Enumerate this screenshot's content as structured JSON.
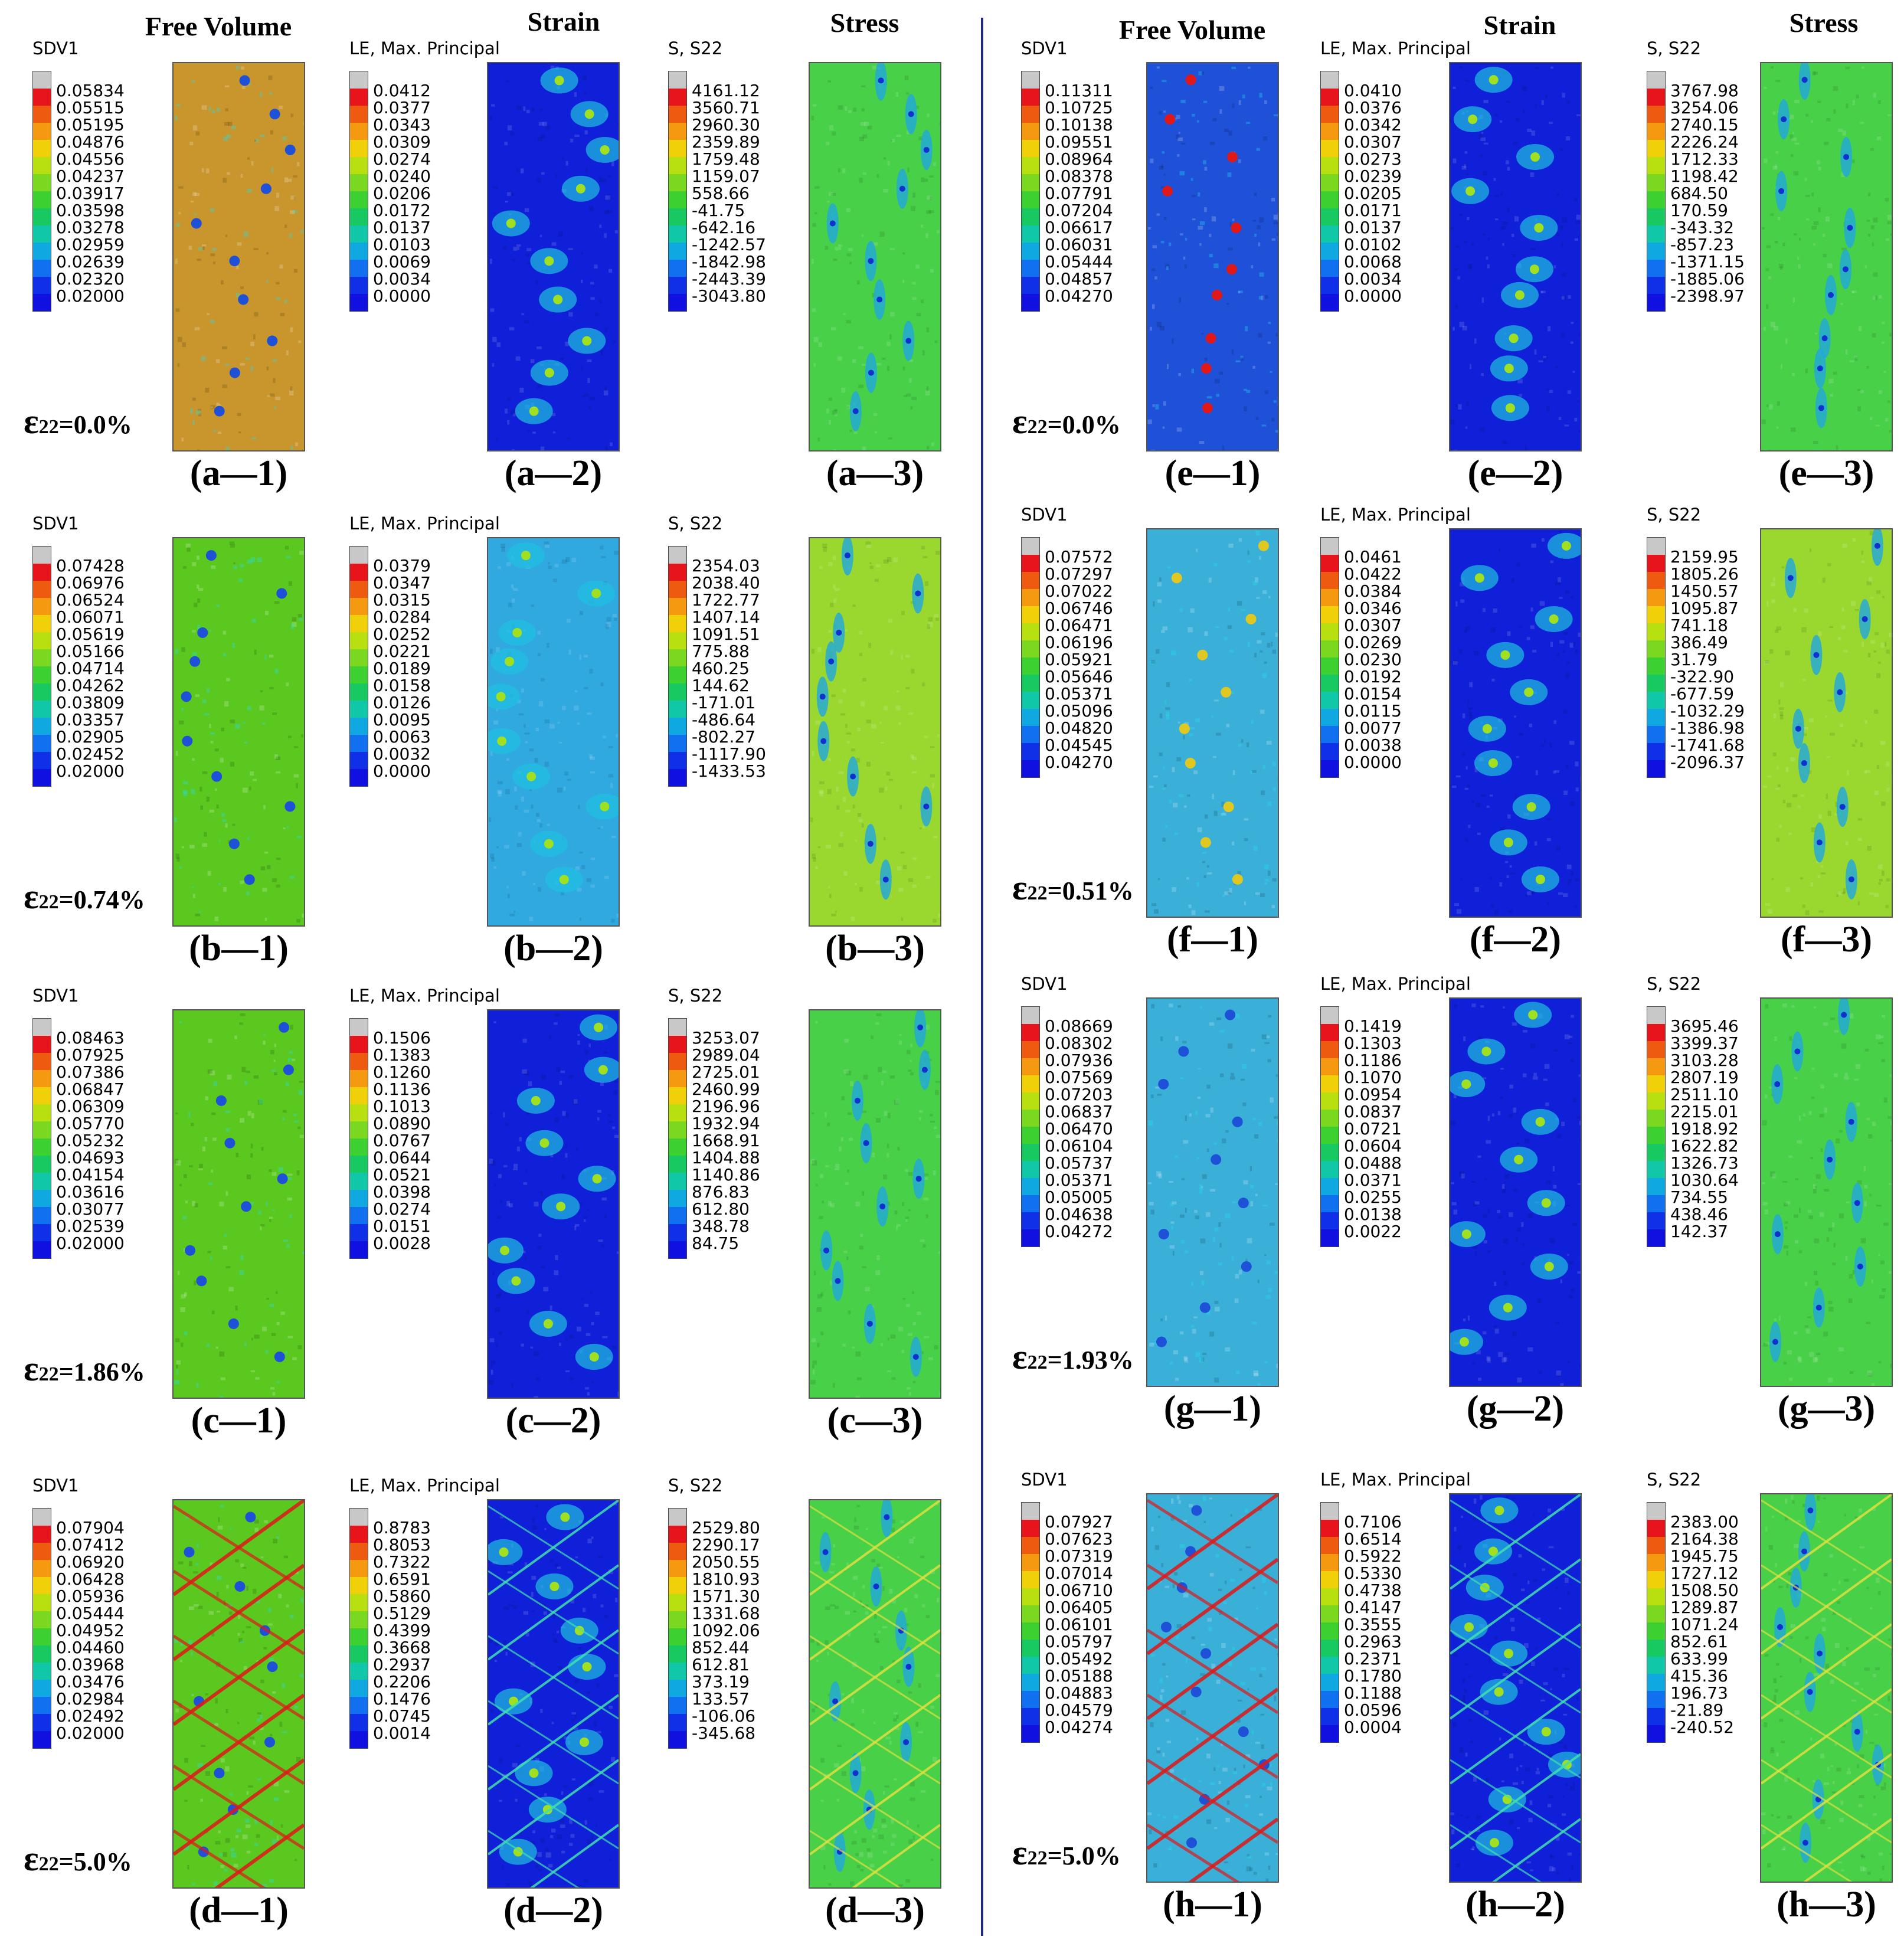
{
  "headers": {
    "free_volume": "Free Volume",
    "strain": "Strain",
    "stress": "Stress"
  },
  "legend_titles": {
    "sdv": "SDV1",
    "le": "LE, Max. Principal",
    "s22": "S, S22"
  },
  "colors": {
    "legend_scale": [
      "#c8c8c8",
      "#e8141c",
      "#ee5a10",
      "#f59a10",
      "#f0d008",
      "#b8e010",
      "#7ad820",
      "#3cd030",
      "#18c860",
      "#10c8a8",
      "#10a8e0",
      "#1070f0",
      "#1030e8",
      "#1010e0",
      "#404040"
    ],
    "separator": "#1f2a7a",
    "fv_orange": "#c8962c",
    "fv_green": "#5bc820",
    "fv_blue": "#1e50d8",
    "strain_blue": "#1020d8",
    "stress_green": "#48d048",
    "shear_band_red": "#e01818"
  },
  "strain_symbol": "ε",
  "strain_subscript": "22",
  "panels": [
    {
      "group": "a",
      "label_1": "(a—1)",
      "label_2": "(a—2)",
      "label_3": "(a—3)",
      "strain_value": "=0.0%",
      "sdv": [
        "0.05834",
        "0.05515",
        "0.05195",
        "0.04876",
        "0.04556",
        "0.04237",
        "0.03917",
        "0.03598",
        "0.03278",
        "0.02959",
        "0.02639",
        "0.02320",
        "0.02000"
      ],
      "le": [
        "0.0412",
        "0.0377",
        "0.0343",
        "0.0309",
        "0.0274",
        "0.0240",
        "0.0206",
        "0.0172",
        "0.0137",
        "0.0103",
        "0.0069",
        "0.0034",
        "0.0000"
      ],
      "s22": [
        "4161.12",
        "3560.71",
        "2960.30",
        "2359.89",
        "1759.48",
        "1159.07",
        "558.66",
        "-41.75",
        "-642.16",
        "-1242.57",
        "-1842.98",
        "-2443.39",
        "-3043.80"
      ]
    },
    {
      "group": "b",
      "label_1": "(b—1)",
      "label_2": "(b—2)",
      "label_3": "(b—3)",
      "strain_value": "=0.74%",
      "sdv": [
        "0.07428",
        "0.06976",
        "0.06524",
        "0.06071",
        "0.05619",
        "0.05166",
        "0.04714",
        "0.04262",
        "0.03809",
        "0.03357",
        "0.02905",
        "0.02452",
        "0.02000"
      ],
      "le": [
        "0.0379",
        "0.0347",
        "0.0315",
        "0.0284",
        "0.0252",
        "0.0221",
        "0.0189",
        "0.0158",
        "0.0126",
        "0.0095",
        "0.0063",
        "0.0032",
        "0.0000"
      ],
      "s22": [
        "2354.03",
        "2038.40",
        "1722.77",
        "1407.14",
        "1091.51",
        "775.88",
        "460.25",
        "144.62",
        "-171.01",
        "-486.64",
        "-802.27",
        "-1117.90",
        "-1433.53"
      ]
    },
    {
      "group": "c",
      "label_1": "(c—1)",
      "label_2": "(c—2)",
      "label_3": "(c—3)",
      "strain_value": "=1.86%",
      "sdv": [
        "0.08463",
        "0.07925",
        "0.07386",
        "0.06847",
        "0.06309",
        "0.05770",
        "0.05232",
        "0.04693",
        "0.04154",
        "0.03616",
        "0.03077",
        "0.02539",
        "0.02000"
      ],
      "le": [
        "0.1506",
        "0.1383",
        "0.1260",
        "0.1136",
        "0.1013",
        "0.0890",
        "0.0767",
        "0.0644",
        "0.0521",
        "0.0398",
        "0.0274",
        "0.0151",
        "0.0028"
      ],
      "s22": [
        "3253.07",
        "2989.04",
        "2725.01",
        "2460.99",
        "2196.96",
        "1932.94",
        "1668.91",
        "1404.88",
        "1140.86",
        "876.83",
        "612.80",
        "348.78",
        "84.75"
      ]
    },
    {
      "group": "d",
      "label_1": "(d—1)",
      "label_2": "(d—2)",
      "label_3": "(d—3)",
      "strain_value": "=5.0%",
      "sdv": [
        "0.07904",
        "0.07412",
        "0.06920",
        "0.06428",
        "0.05936",
        "0.05444",
        "0.04952",
        "0.04460",
        "0.03968",
        "0.03476",
        "0.02984",
        "0.02492",
        "0.02000"
      ],
      "le": [
        "0.8783",
        "0.8053",
        "0.7322",
        "0.6591",
        "0.5860",
        "0.5129",
        "0.4399",
        "0.3668",
        "0.2937",
        "0.2206",
        "0.1476",
        "0.0745",
        "0.0014"
      ],
      "s22": [
        "2529.80",
        "2290.17",
        "2050.55",
        "1810.93",
        "1571.30",
        "1331.68",
        "1092.06",
        "852.44",
        "612.81",
        "373.19",
        "133.57",
        "-106.06",
        "-345.68"
      ]
    },
    {
      "group": "e",
      "label_1": "(e—1)",
      "label_2": "(e—2)",
      "label_3": "(e—3)",
      "strain_value": "=0.0%",
      "sdv": [
        "0.11311",
        "0.10725",
        "0.10138",
        "0.09551",
        "0.08964",
        "0.08378",
        "0.07791",
        "0.07204",
        "0.06617",
        "0.06031",
        "0.05444",
        "0.04857",
        "0.04270"
      ],
      "le": [
        "0.0410",
        "0.0376",
        "0.0342",
        "0.0307",
        "0.0273",
        "0.0239",
        "0.0205",
        "0.0171",
        "0.0137",
        "0.0102",
        "0.0068",
        "0.0034",
        "0.0000"
      ],
      "s22": [
        "3767.98",
        "3254.06",
        "2740.15",
        "2226.24",
        "1712.33",
        "1198.42",
        "684.50",
        "170.59",
        "-343.32",
        "-857.23",
        "-1371.15",
        "-1885.06",
        "-2398.97"
      ]
    },
    {
      "group": "f",
      "label_1": "(f—1)",
      "label_2": "(f—2)",
      "label_3": "(f—3)",
      "strain_value": "=0.51%",
      "sdv": [
        "0.07572",
        "0.07297",
        "0.07022",
        "0.06746",
        "0.06471",
        "0.06196",
        "0.05921",
        "0.05646",
        "0.05371",
        "0.05096",
        "0.04820",
        "0.04545",
        "0.04270"
      ],
      "le": [
        "0.0461",
        "0.0422",
        "0.0384",
        "0.0346",
        "0.0307",
        "0.0269",
        "0.0230",
        "0.0192",
        "0.0154",
        "0.0115",
        "0.0077",
        "0.0038",
        "0.0000"
      ],
      "s22": [
        "2159.95",
        "1805.26",
        "1450.57",
        "1095.87",
        "741.18",
        "386.49",
        "31.79",
        "-322.90",
        "-677.59",
        "-1032.29",
        "-1386.98",
        "-1741.68",
        "-2096.37"
      ]
    },
    {
      "group": "g",
      "label_1": "(g—1)",
      "label_2": "(g—2)",
      "label_3": "(g—3)",
      "strain_value": "=1.93%",
      "sdv": [
        "0.08669",
        "0.08302",
        "0.07936",
        "0.07569",
        "0.07203",
        "0.06837",
        "0.06470",
        "0.06104",
        "0.05737",
        "0.05371",
        "0.05005",
        "0.04638",
        "0.04272"
      ],
      "le": [
        "0.1419",
        "0.1303",
        "0.1186",
        "0.1070",
        "0.0954",
        "0.0837",
        "0.0721",
        "0.0604",
        "0.0488",
        "0.0371",
        "0.0255",
        "0.0138",
        "0.0022"
      ],
      "s22": [
        "3695.46",
        "3399.37",
        "3103.28",
        "2807.19",
        "2511.10",
        "2215.01",
        "1918.92",
        "1622.82",
        "1326.73",
        "1030.64",
        "734.55",
        "438.46",
        "142.37"
      ]
    },
    {
      "group": "h",
      "label_1": "(h—1)",
      "label_2": "(h—2)",
      "label_3": "(h—3)",
      "strain_value": "=5.0%",
      "sdv": [
        "0.07927",
        "0.07623",
        "0.07319",
        "0.07014",
        "0.06710",
        "0.06405",
        "0.06101",
        "0.05797",
        "0.05492",
        "0.05188",
        "0.04883",
        "0.04579",
        "0.04274"
      ],
      "le": [
        "0.7106",
        "0.6514",
        "0.5922",
        "0.5330",
        "0.4738",
        "0.4147",
        "0.3555",
        "0.2963",
        "0.2371",
        "0.1780",
        "0.1188",
        "0.0596",
        "0.0004"
      ],
      "s22": [
        "2383.00",
        "2164.38",
        "1945.75",
        "1727.12",
        "1508.50",
        "1289.87",
        "1071.24",
        "852.61",
        "633.99",
        "415.36",
        "196.73",
        "-21.89",
        "-240.52"
      ]
    }
  ]
}
